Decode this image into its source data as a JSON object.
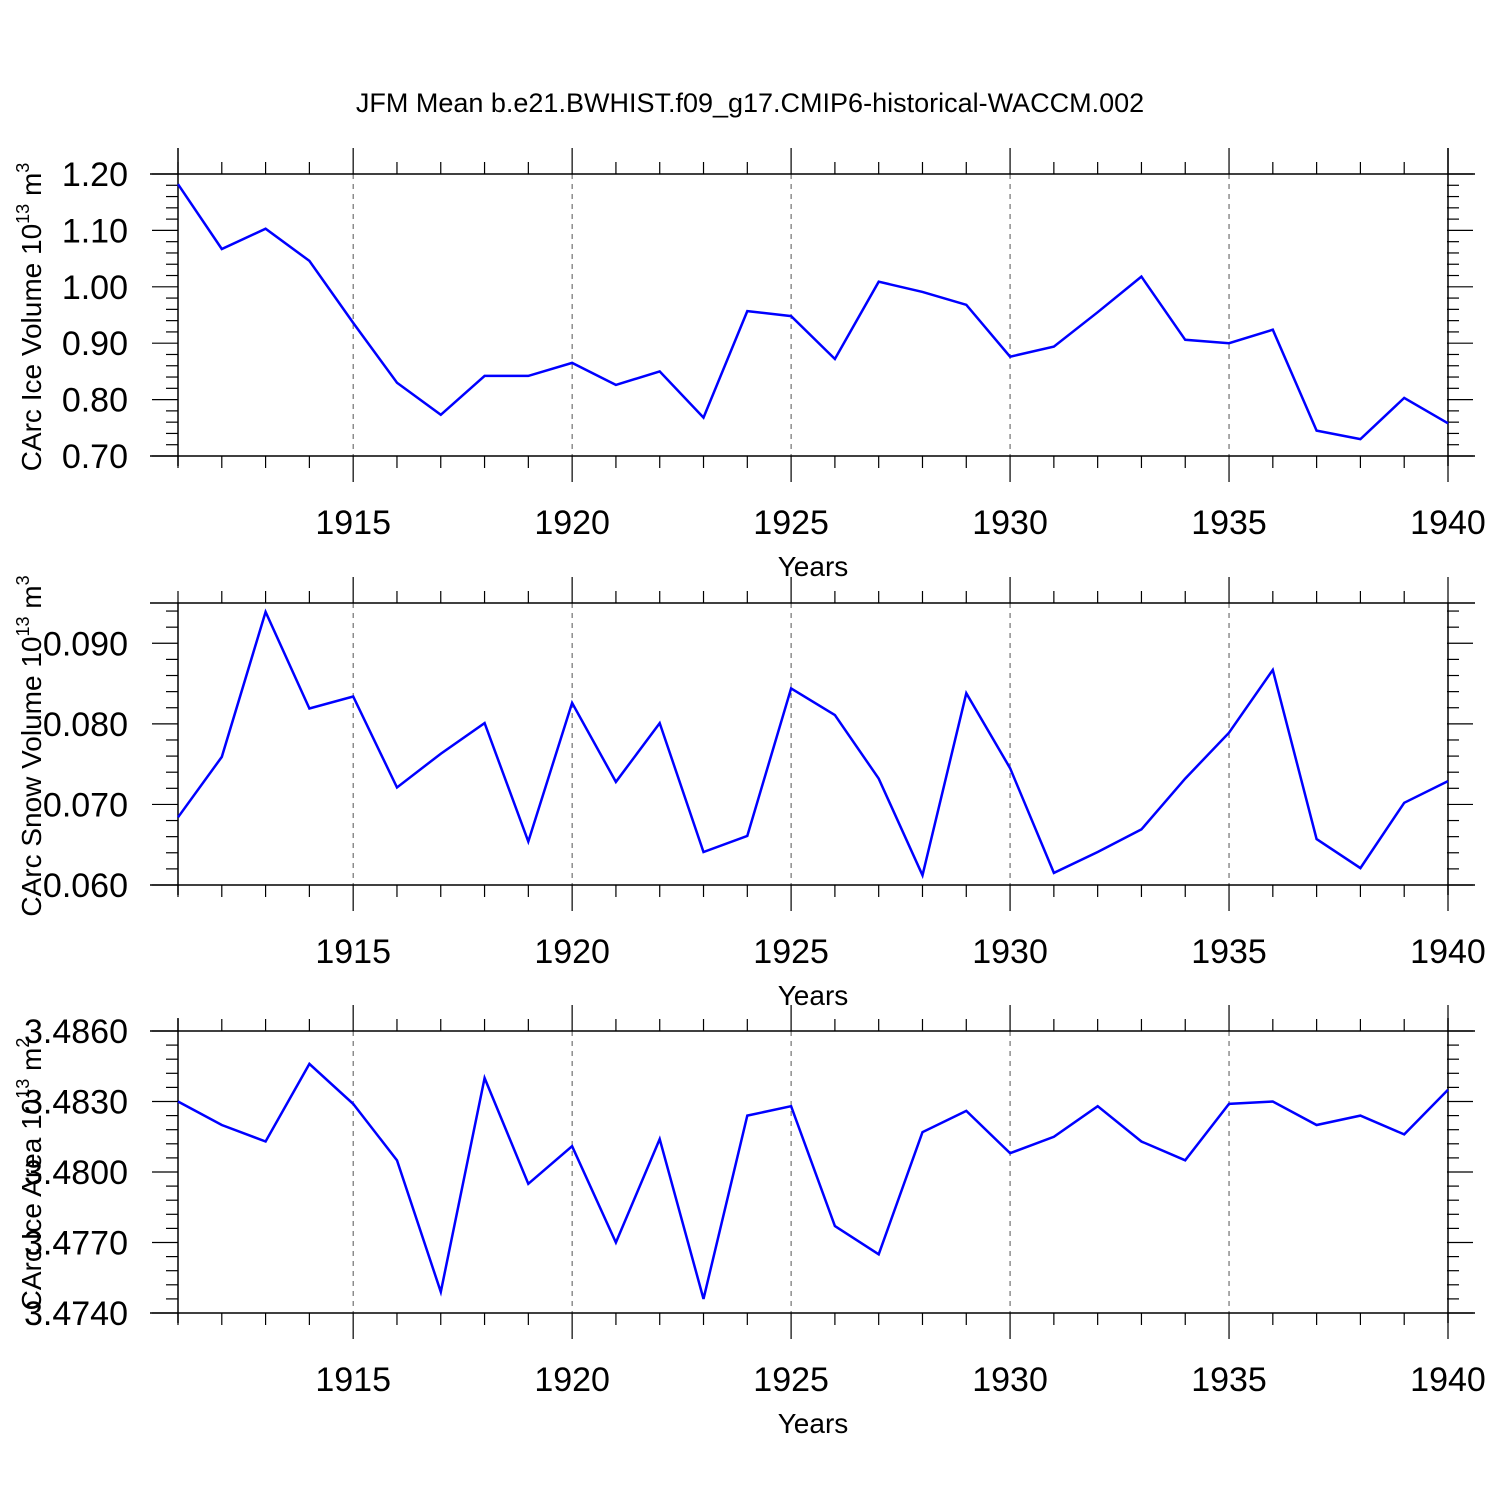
{
  "title": "JFM Mean b.e21.BWHIST.f09_g17.CMIP6-historical-WACCM.002",
  "colors": {
    "line": "#0000ff",
    "axis": "#000000",
    "grid": "#555555"
  },
  "chart_data": [
    {
      "type": "line",
      "ylabel": "CArc Ice Volume 10",
      "ylabel_sup": "13",
      "ylabel_unit": " m",
      "ylabel_unit_sup": "3",
      "xlabel": "Years",
      "xlim": [
        1911,
        1940
      ],
      "ylim": [
        0.7,
        1.2
      ],
      "yticks": [
        0.7,
        0.8,
        0.9,
        1.0,
        1.1,
        1.2
      ],
      "ytick_labels": [
        "0.70",
        "0.80",
        "0.90",
        "1.00",
        "1.10",
        "1.20"
      ],
      "xticks": [
        1915,
        1920,
        1925,
        1930,
        1935,
        1940
      ],
      "xtick_labels": [
        "1915",
        "1920",
        "1925",
        "1930",
        "1935",
        "1940"
      ],
      "grid": "vertical dashed at major x ticks",
      "series": [
        {
          "x": [
            1911,
            1912,
            1913,
            1914,
            1915,
            1916,
            1917,
            1918,
            1919,
            1920,
            1921,
            1922,
            1923,
            1924,
            1925,
            1926,
            1927,
            1928,
            1929,
            1930,
            1931,
            1932,
            1933,
            1934,
            1935,
            1936,
            1937,
            1938,
            1939,
            1940
          ],
          "values": [
            1.182,
            1.067,
            1.103,
            1.046,
            0.936,
            0.83,
            0.773,
            0.842,
            0.842,
            0.865,
            0.826,
            0.85,
            0.768,
            0.957,
            0.948,
            0.872,
            1.009,
            0.991,
            0.968,
            0.876,
            0.894,
            0.955,
            1.018,
            0.906,
            0.9,
            0.924,
            0.745,
            0.73,
            0.803,
            0.758
          ]
        }
      ]
    },
    {
      "type": "line",
      "ylabel": "CArc Snow Volume 10",
      "ylabel_sup": "13",
      "ylabel_unit": " m",
      "ylabel_unit_sup": "3",
      "xlabel": "Years",
      "xlim": [
        1911,
        1940
      ],
      "ylim": [
        0.06,
        0.095
      ],
      "yticks": [
        0.06,
        0.07,
        0.08,
        0.09
      ],
      "ytick_labels": [
        "0.060",
        "0.070",
        "0.080",
        "0.090"
      ],
      "xticks": [
        1915,
        1920,
        1925,
        1930,
        1935,
        1940
      ],
      "xtick_labels": [
        "1915",
        "1920",
        "1925",
        "1930",
        "1935",
        "1940"
      ],
      "grid": "vertical dashed at major x ticks",
      "series": [
        {
          "x": [
            1911,
            1912,
            1913,
            1914,
            1915,
            1916,
            1917,
            1918,
            1919,
            1920,
            1921,
            1922,
            1923,
            1924,
            1925,
            1926,
            1927,
            1928,
            1929,
            1930,
            1931,
            1932,
            1933,
            1934,
            1935,
            1936,
            1937,
            1938,
            1939,
            1940
          ],
          "values": [
            0.0684,
            0.0759,
            0.0939,
            0.0819,
            0.0834,
            0.0721,
            0.0763,
            0.0801,
            0.0654,
            0.0826,
            0.0728,
            0.0801,
            0.0641,
            0.0661,
            0.0844,
            0.0811,
            0.0732,
            0.0612,
            0.0838,
            0.0745,
            0.0615,
            0.0641,
            0.0669,
            0.0732,
            0.0789,
            0.0867,
            0.0657,
            0.0621,
            0.0702,
            0.0729
          ]
        }
      ]
    },
    {
      "type": "line",
      "ylabel": "CArc Ice Area 10",
      "ylabel_sup": "13",
      "ylabel_unit": " m",
      "ylabel_unit_sup": "2",
      "xlabel": "Years",
      "xlim": [
        1911,
        1940
      ],
      "ylim": [
        3.474,
        3.486
      ],
      "yticks": [
        3.474,
        3.477,
        3.48,
        3.483,
        3.486
      ],
      "ytick_labels": [
        "3.4740",
        "3.4770",
        "3.4800",
        "3.4830",
        "3.4860"
      ],
      "xticks": [
        1915,
        1920,
        1925,
        1930,
        1935,
        1940
      ],
      "xtick_labels": [
        "1915",
        "1920",
        "1925",
        "1930",
        "1935",
        "1940"
      ],
      "grid": "vertical dashed at major x ticks",
      "series": [
        {
          "x": [
            1911,
            1912,
            1913,
            1914,
            1915,
            1916,
            1917,
            1918,
            1919,
            1920,
            1921,
            1922,
            1923,
            1924,
            1925,
            1926,
            1927,
            1928,
            1929,
            1930,
            1931,
            1932,
            1933,
            1934,
            1935,
            1936,
            1937,
            1938,
            1939,
            1940
          ],
          "values": [
            3.483,
            3.482,
            3.4813,
            3.4846,
            3.4829,
            3.4805,
            3.4749,
            3.484,
            3.4795,
            3.4811,
            3.477,
            3.4814,
            3.4746,
            3.4824,
            3.4828,
            3.4777,
            3.4765,
            3.4817,
            3.4826,
            3.4808,
            3.4815,
            3.4828,
            3.4813,
            3.4805,
            3.4829,
            3.483,
            3.482,
            3.4824,
            3.4816,
            3.4835
          ]
        }
      ]
    }
  ]
}
